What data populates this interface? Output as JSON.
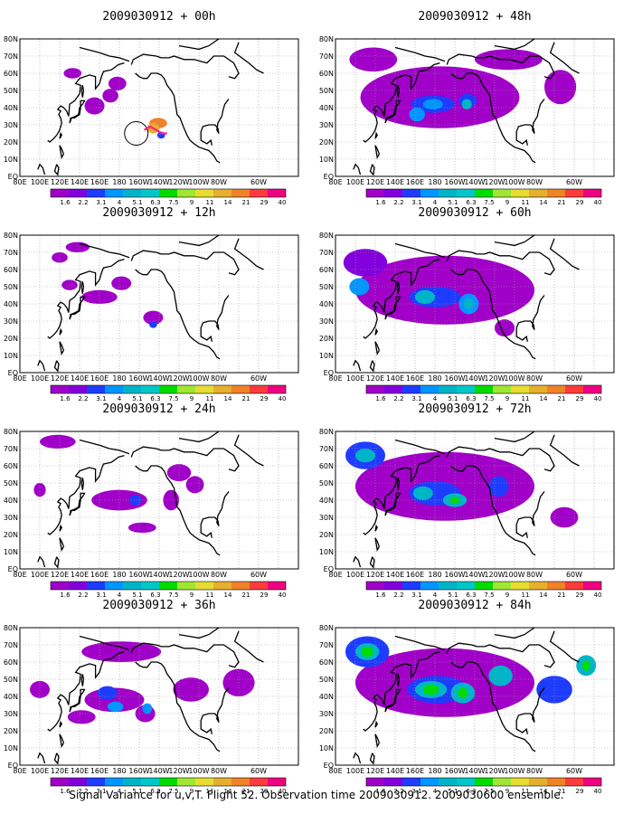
{
  "caption": "Signal Variance for u,v,T. Flight 52. Observation time 2009030912. 2009030600 ensemble.",
  "lon_labels": [
    "80E",
    "100E",
    "120E",
    "140E",
    "160E",
    "180",
    "160W",
    "140W",
    "120W",
    "100W",
    "80W",
    "60W"
  ],
  "lat_labels": [
    "EQ",
    "10N",
    "20N",
    "30N",
    "40N",
    "50N",
    "60N",
    "70N",
    "80N"
  ],
  "colorbar": {
    "levels": [
      "1.6",
      "2.2",
      "3.1",
      "4",
      "5.1",
      "6.3",
      "7.5",
      "9",
      "11",
      "14",
      "21",
      "29",
      "40"
    ],
    "colors": [
      "#a000c8",
      "#8200dc",
      "#1e3cff",
      "#0096ff",
      "#00b4c8",
      "#00c8c8",
      "#00dc00",
      "#a0e632",
      "#e6dc32",
      "#e6af2d",
      "#f08228",
      "#fa3c3c",
      "#f00082"
    ]
  },
  "panels": [
    {
      "title": "2009030912 + 00h",
      "lead_hours": 0
    },
    {
      "title": "2009030912 + 12h",
      "lead_hours": 12
    },
    {
      "title": "2009030912 + 24h",
      "lead_hours": 24
    },
    {
      "title": "2009030912 + 36h",
      "lead_hours": 36
    },
    {
      "title": "2009030912 + 48h",
      "lead_hours": 48
    },
    {
      "title": "2009030912 + 60h",
      "lead_hours": 60
    },
    {
      "title": "2009030912 + 72h",
      "lead_hours": 72
    },
    {
      "title": "2009030912 + 84h",
      "lead_hours": 84
    }
  ]
}
